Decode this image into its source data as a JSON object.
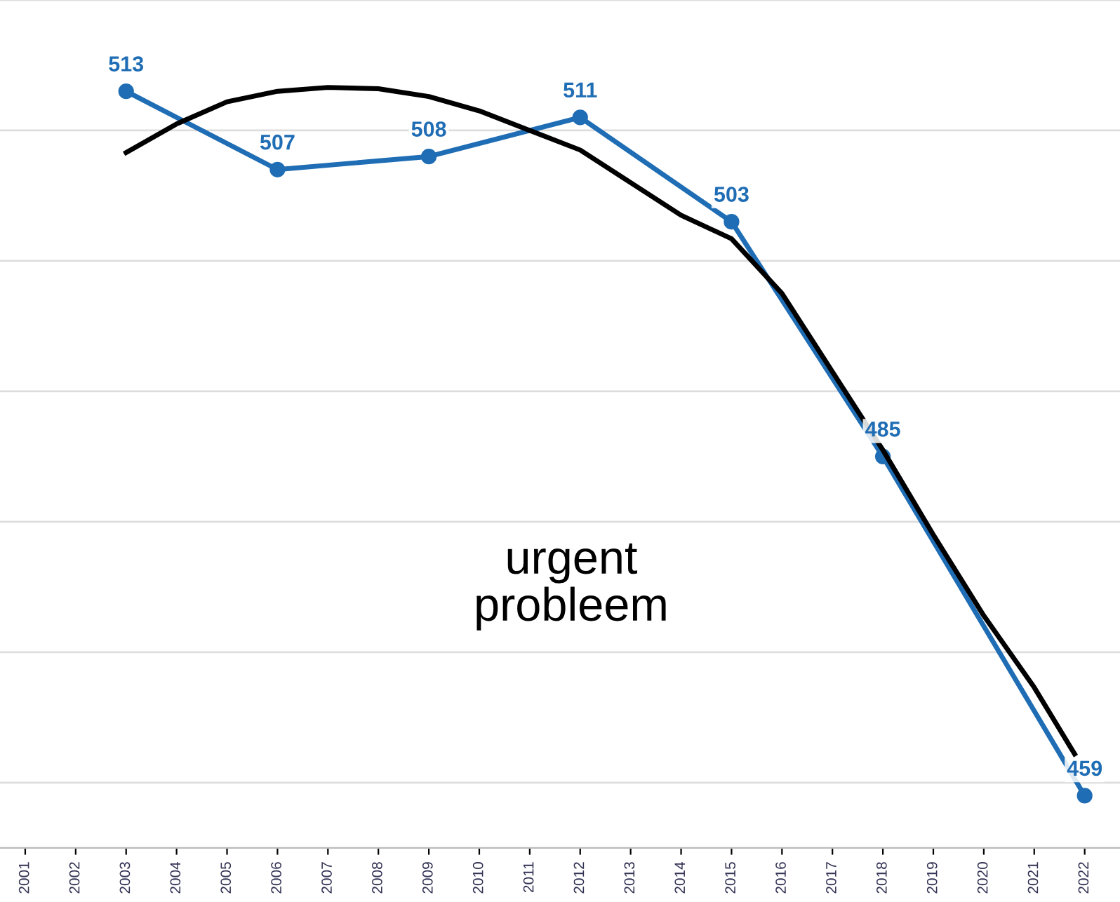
{
  "chart_data": {
    "type": "line",
    "x": [
      2003,
      2006,
      2009,
      2012,
      2015,
      2018,
      2022
    ],
    "series": [
      {
        "color": "#1f6db4",
        "values": [
          513,
          507,
          508,
          511,
          503,
          485,
          459
        ],
        "value_labels": [
          "513",
          "507",
          "508",
          "511",
          "503",
          "485",
          "459"
        ],
        "marker": "circle"
      },
      {
        "type": "line",
        "color": "#000000",
        "x": [
          2003,
          2004,
          2005,
          2006,
          2007,
          2008,
          2009,
          2010,
          2011,
          2012,
          2013,
          2014,
          2015,
          2016,
          2017,
          2018,
          2019,
          2020,
          2021,
          2021.8
        ],
        "values": [
          508.3,
          510.5,
          512.2,
          513.0,
          513.3,
          513.2,
          512.6,
          511.5,
          510.0,
          508.5,
          506.0,
          503.5,
          501.7,
          497.5,
          491.5,
          485.5,
          479.0,
          472.8,
          467.3,
          462.2
        ],
        "marker": "none"
      }
    ],
    "xlim": [
      2000.5,
      2022.7
    ],
    "xticks": [
      {
        "value": 2001,
        "label": "2001"
      },
      {
        "value": 2002,
        "label": "2002"
      },
      {
        "value": 2003,
        "label": "2003"
      },
      {
        "value": 2004,
        "label": "2004"
      },
      {
        "value": 2005,
        "label": "2005"
      },
      {
        "value": 2006,
        "label": "2006"
      },
      {
        "value": 2007,
        "label": "2007"
      },
      {
        "value": 2008,
        "label": "2008"
      },
      {
        "value": 2009,
        "label": "2009"
      },
      {
        "value": 2010,
        "label": "2010"
      },
      {
        "value": 2011,
        "label": "2011"
      },
      {
        "value": 2012,
        "label": "2012"
      },
      {
        "value": 2013,
        "label": "2013"
      },
      {
        "value": 2014,
        "label": "2014"
      },
      {
        "value": 2015,
        "label": "2015"
      },
      {
        "value": 2016,
        "label": "2016"
      },
      {
        "value": 2017,
        "label": "2017"
      },
      {
        "value": 2018,
        "label": "2018"
      },
      {
        "value": 2019,
        "label": "2019"
      },
      {
        "value": 2020,
        "label": "2020"
      },
      {
        "value": 2021,
        "label": "2021"
      },
      {
        "value": 2022,
        "label": "2022"
      }
    ],
    "ylim": [
      455,
      520
    ],
    "yticks": [
      {
        "value": 460,
        "label": null
      },
      {
        "value": 470,
        "label": null
      },
      {
        "value": 480,
        "label": null
      },
      {
        "value": 490,
        "label": null
      },
      {
        "value": 500,
        "label": null
      },
      {
        "value": 510,
        "label": null
      },
      {
        "value": 520,
        "label": null
      }
    ],
    "grid": "y",
    "tick_labels": "x",
    "legend": false,
    "annotations": [
      "urgent\nprobleem"
    ]
  }
}
